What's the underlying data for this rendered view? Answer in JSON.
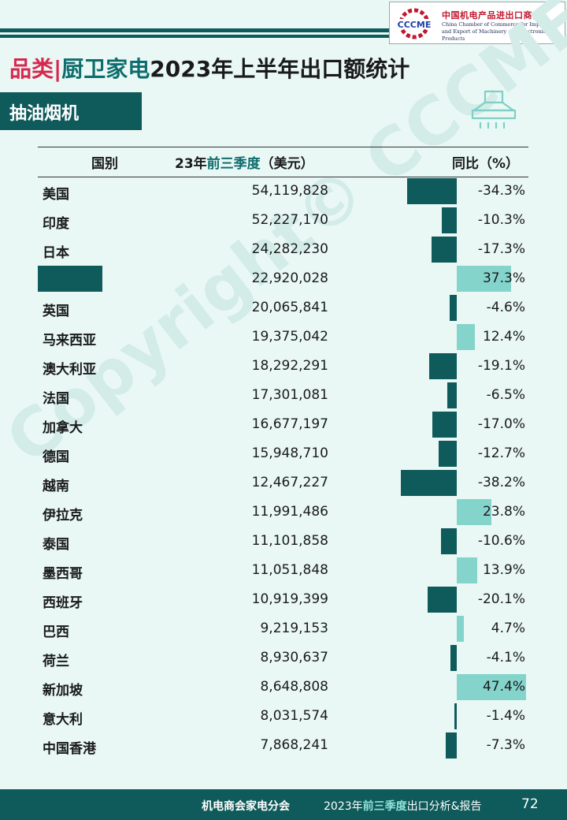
{
  "header": {
    "logo_mark_text": "CCCME",
    "logo_cn": "中国机电产品进出口商会",
    "logo_en_line1": "China Chamber of Commerce for Import",
    "logo_en_line2": "and Export of Machinery and Electronic Products"
  },
  "title": {
    "category": "品类",
    "separator": "|",
    "product_group": "厨卫家电",
    "rest": "2023年上半年出口额统计"
  },
  "section": {
    "label": "抽油烟机",
    "icon": "range-hood-icon"
  },
  "watermark": "Copyright© CCCME",
  "table": {
    "col_country": "国别",
    "col_value_prefix": "23年",
    "col_value_accent": "前三季度",
    "col_value_suffix": "（美元）",
    "col_yoy": "同比（%）",
    "rows": [
      {
        "country": "美国",
        "value": "54,119,828",
        "yoy": "-34.3%",
        "yoy_num": -34.3
      },
      {
        "country": "印度",
        "value": "52,227,170",
        "yoy": "-10.3%",
        "yoy_num": -10.3
      },
      {
        "country": "日本",
        "value": "24,282,230",
        "yoy": "-17.3%",
        "yoy_num": -17.3
      },
      {
        "country": "",
        "redacted": true,
        "value": "22,920,028",
        "yoy": "37.3%",
        "yoy_num": 37.3
      },
      {
        "country": "英国",
        "value": "20,065,841",
        "yoy": "-4.6%",
        "yoy_num": -4.6
      },
      {
        "country": "马来西亚",
        "value": "19,375,042",
        "yoy": "12.4%",
        "yoy_num": 12.4
      },
      {
        "country": "澳大利亚",
        "value": "18,292,291",
        "yoy": "-19.1%",
        "yoy_num": -19.1
      },
      {
        "country": "法国",
        "value": "17,301,081",
        "yoy": "-6.5%",
        "yoy_num": -6.5
      },
      {
        "country": "加拿大",
        "value": "16,677,197",
        "yoy": "-17.0%",
        "yoy_num": -17.0
      },
      {
        "country": "德国",
        "value": "15,948,710",
        "yoy": "-12.7%",
        "yoy_num": -12.7
      },
      {
        "country": "越南",
        "value": "12,467,227",
        "yoy": "-38.2%",
        "yoy_num": -38.2
      },
      {
        "country": "伊拉克",
        "value": "11,991,486",
        "yoy": "23.8%",
        "yoy_num": 23.8
      },
      {
        "country": "泰国",
        "value": "11,101,858",
        "yoy": "-10.6%",
        "yoy_num": -10.6
      },
      {
        "country": "墨西哥",
        "value": "11,051,848",
        "yoy": "13.9%",
        "yoy_num": 13.9
      },
      {
        "country": "西班牙",
        "value": "10,919,399",
        "yoy": "-20.1%",
        "yoy_num": -20.1
      },
      {
        "country": "巴西",
        "value": "9,219,153",
        "yoy": "4.7%",
        "yoy_num": 4.7
      },
      {
        "country": "荷兰",
        "value": "8,930,637",
        "yoy": "-4.1%",
        "yoy_num": -4.1
      },
      {
        "country": "新加坡",
        "value": "8,648,808",
        "yoy": "47.4%",
        "yoy_num": 47.4
      },
      {
        "country": "意大利",
        "value": "8,031,574",
        "yoy": "-1.4%",
        "yoy_num": -1.4
      },
      {
        "country": "中国香港",
        "value": "7,868,241",
        "yoy": "-7.3%",
        "yoy_num": -7.3
      }
    ]
  },
  "footer": {
    "org": "机电商会家电分会",
    "report_prefix": "2023年",
    "report_accent": "前三季度",
    "report_suffix": "出口分析&报告",
    "page": "72"
  },
  "colors": {
    "accent": "#0f5a5a",
    "positive_bar": "#84d4cc",
    "title_pink": "#d6284f",
    "background": "#e9f8f5"
  }
}
